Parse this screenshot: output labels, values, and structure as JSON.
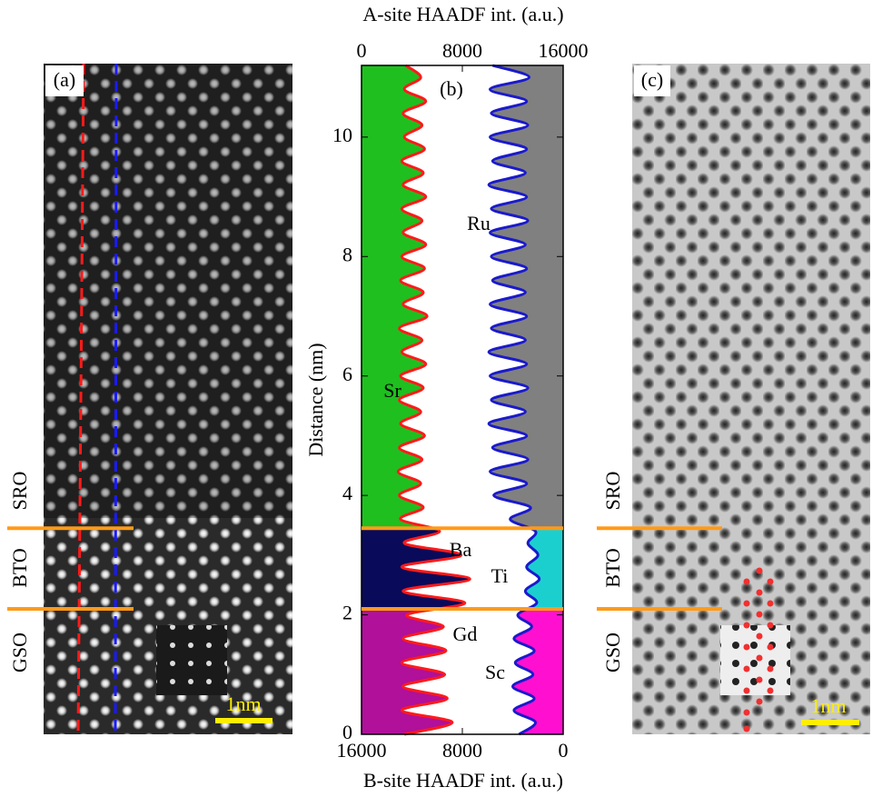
{
  "chart_data": {
    "type": "line",
    "panel_label": "(b)",
    "x_label": "A-site HAADF int. (a.u.)",
    "x2_label": "B-site HAADF int. (a.u.)",
    "y_label": "Distance (nm)",
    "xlim": [
      0,
      16000
    ],
    "xticks": [
      0,
      8000,
      16000
    ],
    "x2lim": [
      16000,
      0
    ],
    "x2ticks": [
      16000,
      8000,
      0
    ],
    "ylim": [
      0,
      11.2
    ],
    "yticks": [
      0,
      2,
      4,
      6,
      8,
      10
    ],
    "interfaces": [
      2.1,
      3.45
    ],
    "interface_color": "#ff9a1a",
    "distance": [
      0,
      0.2,
      0.4,
      0.6,
      0.8,
      1,
      1.2,
      1.4,
      1.6,
      1.8,
      2,
      2.2,
      2.4,
      2.6,
      2.8,
      3,
      3.2,
      3.4,
      3.6,
      3.8,
      4,
      4.2,
      4.4,
      4.6,
      4.8,
      5,
      5.2,
      5.4,
      5.6,
      5.8,
      6,
      6.2,
      6.4,
      6.6,
      6.8,
      7,
      7.2,
      7.4,
      7.6,
      7.8,
      8,
      8.2,
      8.4,
      8.6,
      8.8,
      9,
      9.2,
      9.4,
      9.6,
      9.8,
      10,
      10.2,
      10.4,
      10.6,
      10.8,
      11,
      11.2
    ],
    "series": [
      {
        "color": "#ff1a1a",
        "fills": [
          "#b0109a",
          "#0a0a5a",
          "#1fbf1f"
        ],
        "values": [
          3400,
          7200,
          3200,
          6800,
          3300,
          6600,
          3200,
          6700,
          3300,
          6500,
          3600,
          8200,
          3300,
          8600,
          3200,
          7900,
          3400,
          6200,
          3100,
          4900,
          3000,
          4700,
          2900,
          4800,
          3000,
          5000,
          3100,
          4700,
          3000,
          4900,
          3100,
          5100,
          3200,
          4800,
          3000,
          5200,
          3300,
          4900,
          3100,
          5000,
          3200,
          5100,
          3300,
          4800,
          3200,
          5100,
          3300,
          4900,
          3200,
          5000,
          3400,
          4800,
          3300,
          5100,
          3400,
          4700,
          3500
        ]
      },
      {
        "color": "#1a1acc",
        "axis": "x2",
        "fills": [
          "#ff10d0",
          "#1ccfcf",
          "#808080"
        ],
        "values": [
          3500,
          2200,
          3900,
          2300,
          4000,
          2400,
          3800,
          2300,
          3900,
          2500,
          3600,
          2100,
          3000,
          1900,
          2900,
          2000,
          2800,
          2200,
          4200,
          2600,
          5500,
          2900,
          5800,
          2800,
          5600,
          2900,
          5900,
          3000,
          5700,
          2800,
          5800,
          2900,
          5900,
          3000,
          5700,
          2900,
          5800,
          3000,
          5600,
          2900,
          5700,
          3000,
          5800,
          2800,
          5700,
          2900,
          5900,
          3000,
          5600,
          2900,
          5800,
          2800,
          5700,
          2900,
          5800,
          2700,
          5600
        ]
      }
    ],
    "annotations": [
      "Sr",
      "Ru",
      "Ba",
      "Ti",
      "Gd",
      "Sc"
    ]
  },
  "panels": {
    "a": {
      "label": "(a)",
      "scale_bar": "1nm"
    },
    "c": {
      "label": "(c)",
      "scale_bar": "1nm"
    }
  },
  "layers": [
    "SRO",
    "BTO",
    "GSO"
  ]
}
